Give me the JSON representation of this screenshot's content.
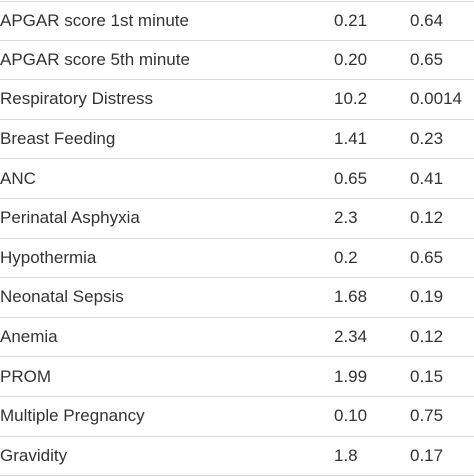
{
  "table": {
    "rows": [
      {
        "label": "APGAR score 1st minute",
        "value1": "0.21",
        "value2": "0.64"
      },
      {
        "label": "APGAR score 5th minute",
        "value1": "0.20",
        "value2": "0.65"
      },
      {
        "label": "Respiratory Distress",
        "value1": "10.2",
        "value2": "0.0014"
      },
      {
        "label": "Breast Feeding",
        "value1": "1.41",
        "value2": "0.23"
      },
      {
        "label": "ANC",
        "value1": "0.65",
        "value2": "0.41"
      },
      {
        "label": "Perinatal Asphyxia",
        "value1": "2.3",
        "value2": "0.12"
      },
      {
        "label": "Hypothermia",
        "value1": "0.2",
        "value2": "0.65"
      },
      {
        "label": "Neonatal Sepsis",
        "value1": "1.68",
        "value2": "0.19"
      },
      {
        "label": "Anemia",
        "value1": "2.34",
        "value2": "0.12"
      },
      {
        "label": "PROM",
        "value1": "1.99",
        "value2": "0.15"
      },
      {
        "label": "Multiple Pregnancy",
        "value1": "0.10",
        "value2": "0.75"
      },
      {
        "label": "Gravidity",
        "value1": "1.8",
        "value2": "0.17"
      }
    ]
  }
}
